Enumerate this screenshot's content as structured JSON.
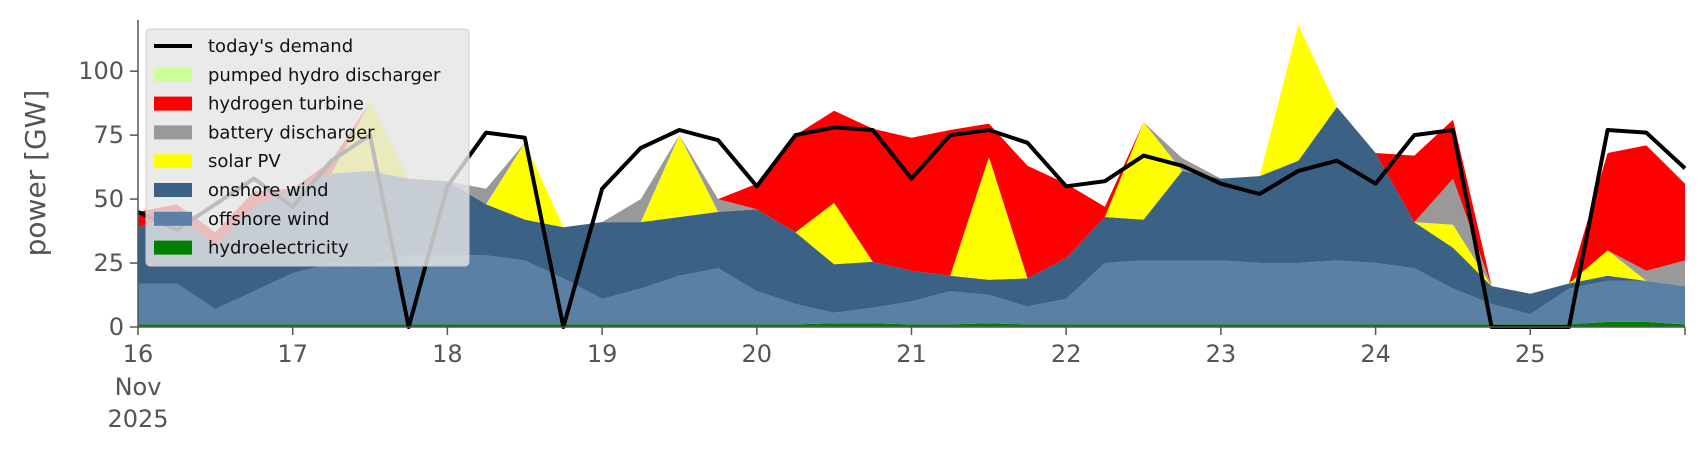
{
  "chart_data": {
    "type": "area",
    "xlabel": "",
    "ylabel": "power [GW]",
    "ylim": [
      0,
      120
    ],
    "xlim": [
      "2025-11-16",
      "2025-11-26"
    ],
    "y_ticks": [
      "0",
      "25",
      "50",
      "75",
      "100"
    ],
    "x_ticks": [
      "16",
      "17",
      "18",
      "19",
      "20",
      "21",
      "22",
      "23",
      "24",
      "25"
    ],
    "x_tick_date_lines": [
      "Nov",
      "2025"
    ],
    "grid": false,
    "legend_position": "top-left",
    "x": [
      16.0,
      16.25,
      16.5,
      16.75,
      17.0,
      17.25,
      17.5,
      17.75,
      18.0,
      18.25,
      18.5,
      18.75,
      19.0,
      19.25,
      19.5,
      19.75,
      20.0,
      20.25,
      20.5,
      20.75,
      21.0,
      21.25,
      21.5,
      21.75,
      22.0,
      22.25,
      22.5,
      22.75,
      23.0,
      23.25,
      23.5,
      23.75,
      24.0,
      24.25,
      24.5,
      24.75,
      25.0,
      25.25,
      25.5,
      25.75,
      26.0
    ],
    "x_unit": "day of November 2025",
    "series": [
      {
        "name": "hydroelectricity",
        "kind": "area",
        "color": "#008000",
        "values": [
          1.0,
          1.0,
          1.0,
          1.0,
          1.0,
          1.0,
          1.0,
          1.0,
          1.0,
          1.0,
          1.0,
          1.0,
          1.0,
          1.0,
          1.0,
          1.0,
          1.0,
          1.0,
          1.5,
          1.5,
          1.0,
          1.0,
          1.5,
          1.0,
          1.0,
          1.0,
          1.0,
          1.0,
          1.0,
          1.0,
          1.0,
          1.0,
          1.0,
          1.0,
          1.0,
          1.0,
          1.0,
          1.0,
          2.0,
          2.0,
          1.0
        ]
      },
      {
        "name": "offshore wind",
        "kind": "area",
        "color": "#5b80a5",
        "values": [
          16,
          16,
          6,
          13,
          20,
          24,
          23,
          27,
          27,
          27,
          25,
          18,
          10,
          14,
          19,
          22,
          13,
          8,
          4,
          6,
          9,
          13,
          11,
          7,
          10,
          24,
          25,
          25,
          25,
          24,
          24,
          25,
          24,
          22,
          14,
          8,
          4,
          14,
          16,
          16,
          15
        ]
      },
      {
        "name": "onshore wind",
        "kind": "area",
        "color": "#3b6184",
        "values": [
          22,
          27,
          25,
          33,
          33,
          35,
          37,
          30,
          29,
          20,
          16,
          20,
          30,
          26,
          23,
          22,
          32,
          28,
          19,
          18,
          12,
          6,
          6,
          11,
          16,
          18,
          16,
          35,
          32,
          34,
          40,
          60,
          43,
          18,
          16,
          7,
          8,
          2,
          2,
          0,
          0
        ]
      },
      {
        "name": "solar PV",
        "kind": "area",
        "color": "#ffff00",
        "values": [
          0,
          0,
          0,
          0,
          0,
          0,
          27,
          0,
          0,
          0,
          30,
          0,
          0,
          0,
          32,
          0,
          0,
          0,
          24,
          0,
          0,
          0,
          48,
          0,
          0,
          0,
          38,
          0,
          0,
          0,
          53,
          0,
          0,
          0,
          9,
          0,
          0,
          0,
          10,
          0,
          0
        ]
      },
      {
        "name": "battery discharger",
        "kind": "area",
        "color": "#999999",
        "values": [
          0,
          0,
          0,
          0,
          0,
          0,
          0,
          0,
          0,
          6,
          0,
          0,
          0,
          9,
          0,
          5,
          0,
          0,
          0,
          0,
          0,
          0,
          0,
          0,
          0,
          0,
          0,
          5,
          0,
          0,
          0,
          0,
          0,
          0,
          18,
          0,
          0,
          0,
          0,
          4,
          10
        ]
      },
      {
        "name": "hydrogen turbine",
        "kind": "area",
        "color": "#ff0000",
        "values": [
          6,
          4,
          5,
          6,
          0,
          5,
          0,
          0,
          0,
          0,
          0,
          0,
          0,
          0,
          0,
          0,
          10,
          38,
          36,
          52,
          52,
          57,
          13,
          44,
          29,
          4,
          0,
          0,
          0,
          0,
          0,
          0,
          0,
          26,
          23,
          0,
          0,
          0,
          38,
          49,
          30
        ]
      },
      {
        "name": "pumped hydro discharger",
        "kind": "area",
        "color": "#ccff99",
        "values": [
          0,
          0,
          0,
          0,
          0,
          0,
          0,
          0,
          0,
          0,
          0,
          0,
          0,
          0,
          0,
          0,
          0,
          0,
          0,
          0,
          0,
          0,
          0,
          0,
          0,
          0,
          0,
          0,
          0,
          0,
          0,
          0,
          0,
          0,
          0,
          0,
          0,
          0,
          0,
          0,
          0
        ]
      },
      {
        "name": "today's demand",
        "kind": "line",
        "color": "#000000",
        "values": [
          45,
          38,
          48,
          58,
          47,
          65,
          75,
          0,
          55,
          76,
          74,
          0,
          54,
          70,
          77,
          73,
          55,
          75,
          78,
          77,
          58,
          75,
          77,
          72,
          55,
          57,
          67,
          63,
          56,
          52,
          61,
          65,
          56,
          75,
          77,
          0,
          0,
          0,
          77,
          76,
          62
        ]
      }
    ]
  }
}
